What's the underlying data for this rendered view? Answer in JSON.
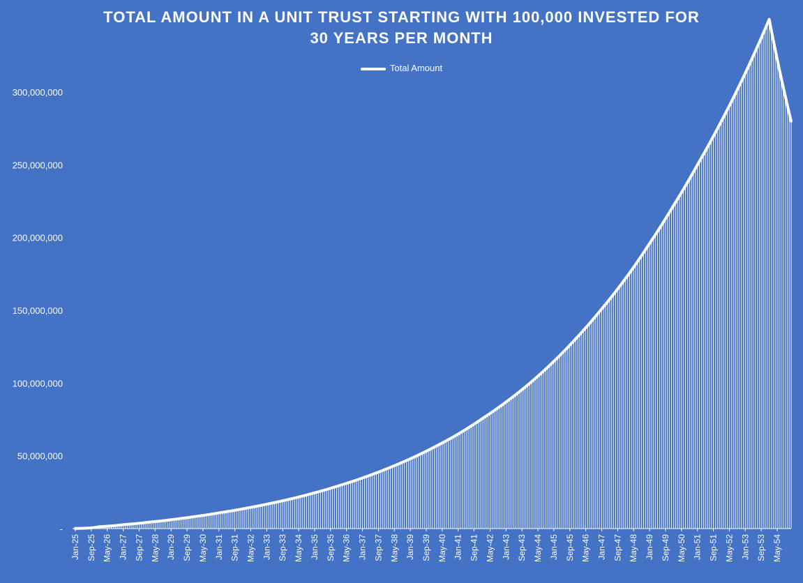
{
  "chart_data": {
    "type": "area",
    "title_lines": [
      "TOTAL AMOUNT IN A UNIT TRUST STARTING WITH 100,000 INVESTED FOR",
      "30 YEARS PER MONTH"
    ],
    "legend": [
      "Total Amount"
    ],
    "legend_position": "top",
    "grid": false,
    "ylim": [
      0,
      300000000
    ],
    "y_ticks": [
      0,
      50000000,
      100000000,
      150000000,
      200000000,
      250000000,
      300000000
    ],
    "y_tick_labels": [
      "-",
      "50,000,000",
      "100,000,000",
      "150,000,000",
      "200,000,000",
      "250,000,000",
      "300,000,000"
    ],
    "x_tick_labels": [
      "Jan-25",
      "Sep-25",
      "May-26",
      "Jan-27",
      "Sep-27",
      "May-28",
      "Jan-29",
      "Sep-29",
      "May-30",
      "Jan-31",
      "Sep-31",
      "May-32",
      "Jan-33",
      "Sep-33",
      "May-34",
      "Jan-35",
      "Sep-35",
      "May-36",
      "Jan-37",
      "Sep-37",
      "May-38",
      "Jan-39",
      "Sep-39",
      "May-40",
      "Jan-41",
      "Sep-41",
      "May-42",
      "Jan-43",
      "Sep-43",
      "May-44",
      "Jan-45",
      "Sep-45",
      "May-46",
      "Jan-47",
      "Sep-47",
      "May-48",
      "Jan-49",
      "Sep-49",
      "May-50",
      "Jan-51",
      "Sep-51",
      "May-52",
      "Jan-53",
      "Sep-53",
      "May-54"
    ],
    "x_range": [
      "Jan-25",
      "Dec-54"
    ],
    "series": [
      {
        "name": "Total Amount",
        "color": "#ffffff",
        "x": [
          "Jan-25",
          "Jan-26",
          "Jan-27",
          "Jan-28",
          "Jan-29",
          "Jan-30",
          "Jan-31",
          "Jan-32",
          "Jan-33",
          "Jan-34",
          "Jan-35",
          "Jan-36",
          "Jan-37",
          "Jan-38",
          "Jan-39",
          "Jan-40",
          "Jan-41",
          "Jan-42",
          "Jan-43",
          "Jan-44",
          "Jan-45",
          "Jan-46",
          "Jan-47",
          "Jan-48",
          "Jan-49",
          "Jan-50",
          "Jan-51",
          "Jan-52",
          "Jan-53",
          "Jan-54",
          "Dec-54"
        ],
        "values": [
          100000,
          1300000,
          2700000,
          4300000,
          6100000,
          8300000,
          10800000,
          13600000,
          16800000,
          20400000,
          24600000,
          29400000,
          34800000,
          41000000,
          48000000,
          56000000,
          65000000,
          75500000,
          87000000,
          100000000,
          115000000,
          132000000,
          151000000,
          172000000,
          196000000,
          222000000,
          250000000,
          280000000,
          313000000,
          350000000,
          280000000
        ]
      }
    ]
  }
}
